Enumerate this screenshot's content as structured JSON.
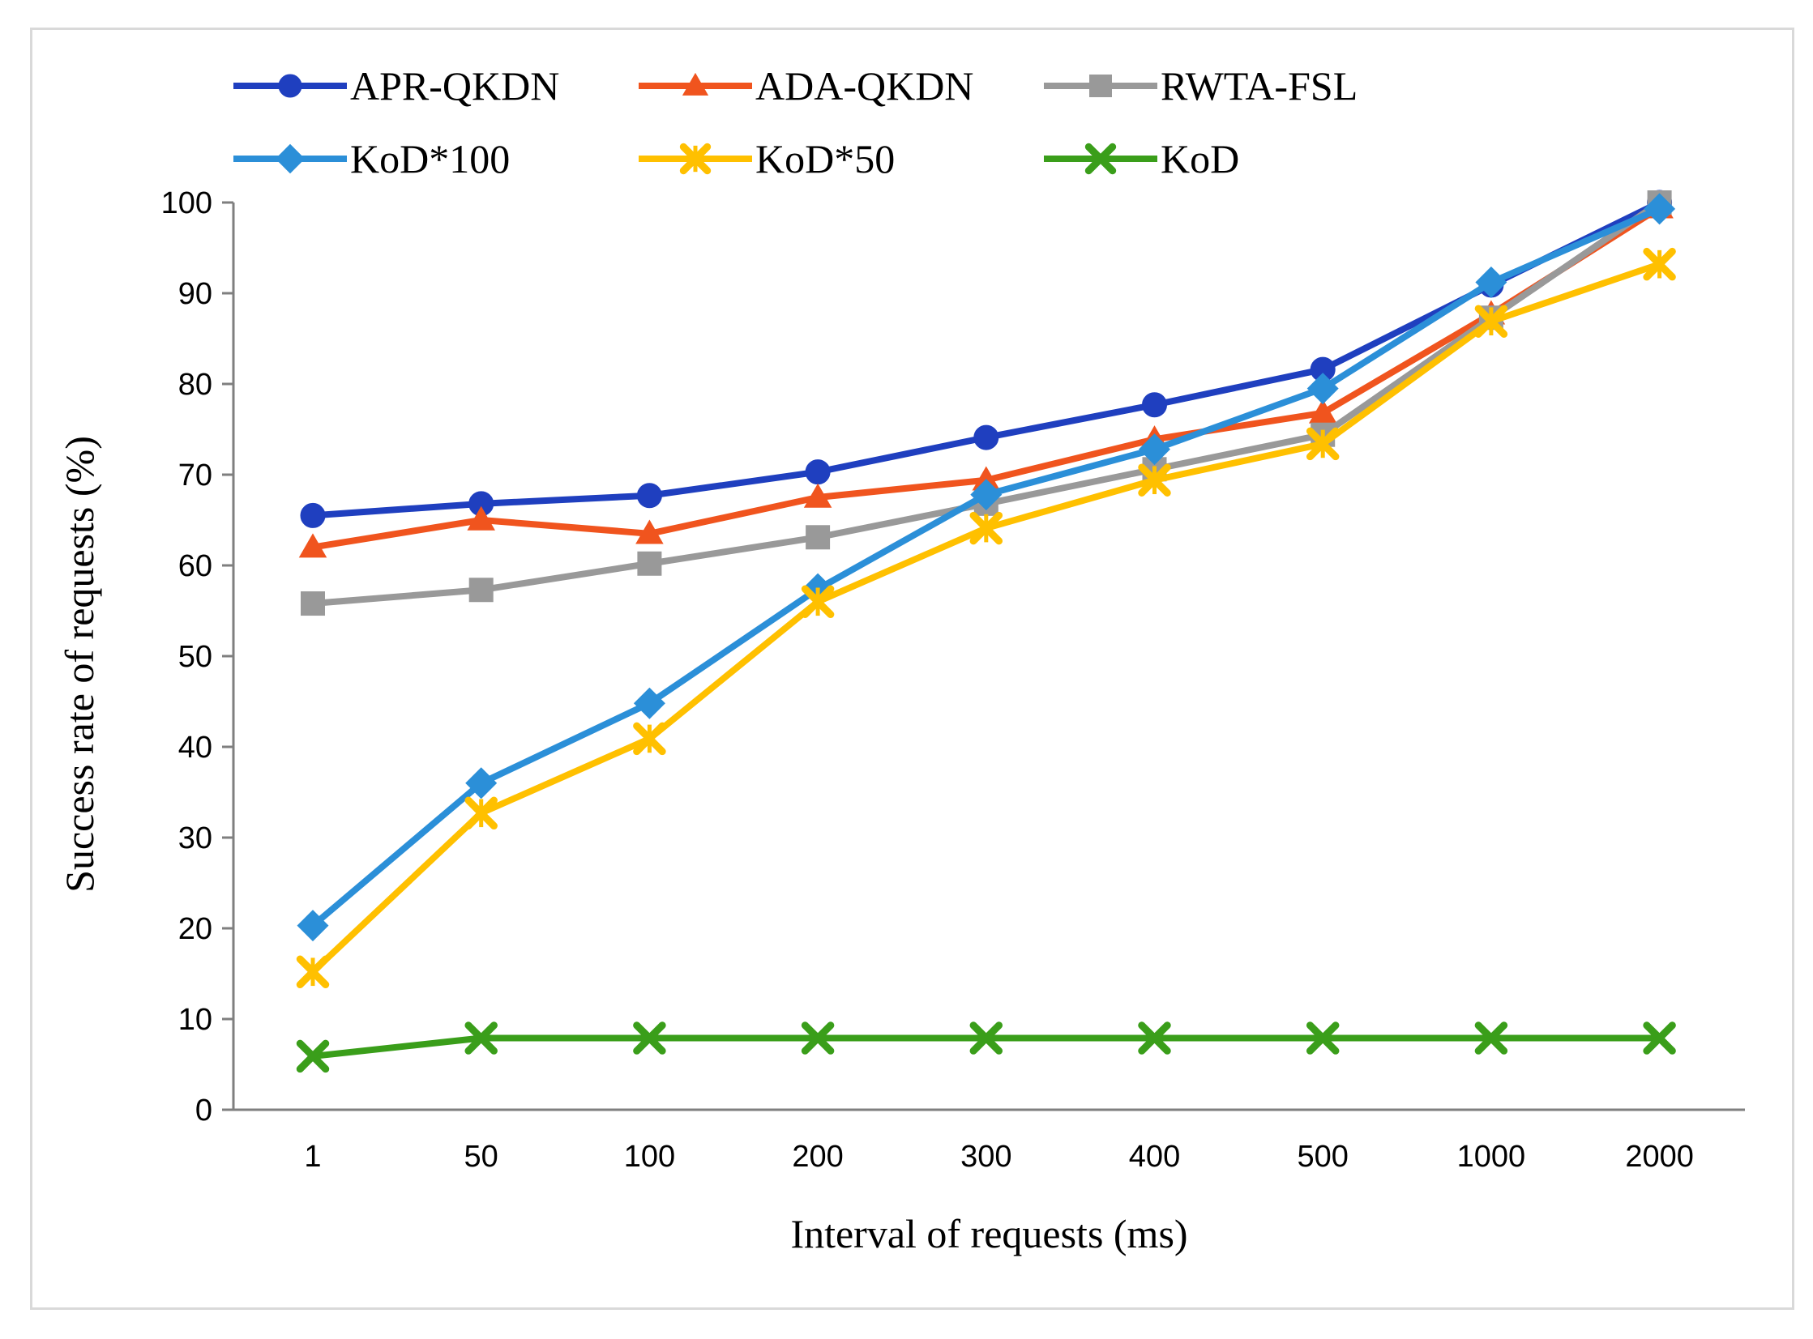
{
  "chart_data": {
    "type": "line",
    "xlabel": "Interval of requests (ms)",
    "ylabel": "Success rate of requests (%)",
    "categories": [
      "1",
      "50",
      "100",
      "200",
      "300",
      "400",
      "500",
      "1000",
      "2000"
    ],
    "ylim": [
      0,
      100
    ],
    "yticks": [
      0,
      10,
      20,
      30,
      40,
      50,
      60,
      70,
      80,
      90,
      100
    ],
    "grid": false,
    "legend_position": "top",
    "series": [
      {
        "name": "APR-QKDN",
        "color": "#1f3fbf",
        "marker": "circle",
        "values": [
          65.5,
          66.8,
          67.7,
          70.3,
          74.1,
          77.7,
          81.6,
          90.9,
          100
        ]
      },
      {
        "name": "ADA-QKDN",
        "color": "#f0541e",
        "marker": "triangle",
        "values": [
          62,
          65,
          63.5,
          67.5,
          69.4,
          73.9,
          76.8,
          87.7,
          99.4
        ]
      },
      {
        "name": "RWTA-FSL",
        "color": "#999999",
        "marker": "square",
        "values": [
          55.8,
          57.3,
          60.2,
          63.1,
          66.8,
          70.6,
          74.4,
          87.3,
          100
        ]
      },
      {
        "name": "KoD*100",
        "color": "#2b8fd8",
        "marker": "diamond",
        "values": [
          20.3,
          36,
          44.8,
          57.4,
          67.8,
          72.8,
          79.5,
          91.2,
          99.3
        ]
      },
      {
        "name": "KoD*50",
        "color": "#ffc000",
        "marker": "xstar",
        "values": [
          15.2,
          32.7,
          40.9,
          56,
          64.1,
          69.4,
          73.4,
          86.9,
          93.2
        ]
      },
      {
        "name": "KoD",
        "color": "#3a9e1a",
        "marker": "x",
        "values": [
          5.9,
          7.9,
          7.9,
          7.9,
          7.9,
          7.9,
          7.9,
          7.9,
          7.9
        ]
      }
    ]
  }
}
